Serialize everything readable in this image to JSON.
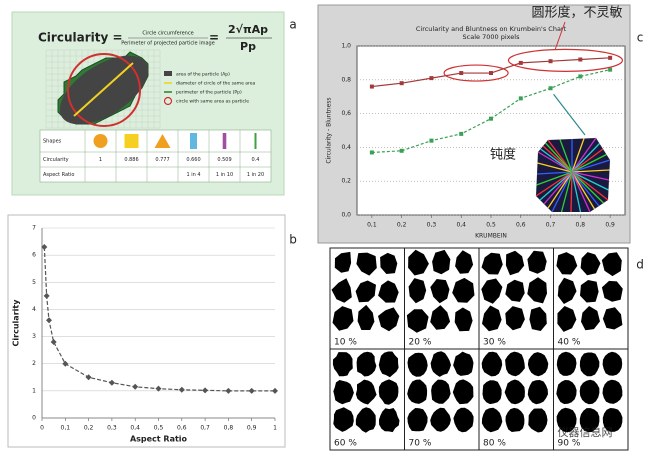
{
  "panel_labels": [
    "a",
    "b",
    "c",
    "d"
  ],
  "panel_a": {
    "lhs": "Circularity =",
    "numerator": "Circle circumference",
    "denominator": "Perimeter of projected particle image",
    "equals": "=",
    "rhs_numerator": "2√πAp",
    "rhs_denominator": "Pp",
    "legend": [
      "area of the particle (Ap)",
      "diameter of circle of the same area",
      "perimeter of the particle (Pp)",
      "circle with same area as particle"
    ],
    "table": {
      "row_headers": [
        "Shapes",
        "Circularity",
        "Aspect Ratio"
      ],
      "circularity": [
        "1",
        "0.886",
        "0.777",
        "0.660",
        "0.509",
        "0.4"
      ],
      "aspect_ratio": [
        null,
        null,
        null,
        "1 in 4",
        "1 in 10",
        "1 in 20"
      ]
    }
  },
  "chart_data": [
    {
      "type": "line",
      "x_label": "Aspect Ratio",
      "y_label": "Circularity",
      "x": [
        0.01,
        0.02,
        0.03,
        0.05,
        0.1,
        0.2,
        0.3,
        0.4,
        0.5,
        0.6,
        0.7,
        0.8,
        0.9,
        1
      ],
      "series": [
        {
          "color": "#555555",
          "values": [
            6.3,
            4.5,
            3.6,
            2.8,
            2.0,
            1.5,
            1.3,
            1.15,
            1.08,
            1.04,
            1.02,
            1.0,
            1.0,
            1.0
          ]
        }
      ],
      "xlim": [
        0,
        1
      ],
      "ylim": [
        0,
        7
      ],
      "xticks": [
        0,
        {
          "value": 0.1,
          "label": "0,1"
        },
        {
          "value": 0.2,
          "label": "0,2"
        },
        {
          "value": 0.3,
          "label": "0,3"
        },
        {
          "value": 0.4,
          "label": "0,4"
        },
        {
          "value": 0.5,
          "label": "0,5"
        },
        {
          "value": 0.6,
          "label": "0,6"
        },
        {
          "value": 0.7,
          "label": "0,7"
        },
        {
          "value": 0.8,
          "label": "0,8"
        },
        {
          "value": 0.9,
          "label": "0,9"
        },
        1
      ],
      "yticks": [
        0,
        1,
        2,
        3,
        4,
        5,
        6,
        7
      ],
      "grid": true
    },
    {
      "type": "line",
      "title": "Circularity and Bluntness on Krumbein's Chart",
      "subtitle": "Scale 7000 pixels",
      "x_label": "KRUMBEIN",
      "y_label": "Circularity - Bluntness",
      "x": [
        0.1,
        0.2,
        0.3,
        0.4,
        0.5,
        0.6,
        0.7,
        0.8,
        0.9
      ],
      "series": [
        {
          "color": "#a33a3a",
          "values": [
            0.76,
            0.78,
            0.81,
            0.84,
            0.84,
            0.9,
            0.91,
            0.92,
            0.93
          ]
        },
        {
          "color": "#3aa055",
          "values": [
            0.37,
            0.38,
            0.44,
            0.48,
            0.57,
            0.69,
            0.75,
            0.82,
            0.86
          ]
        }
      ],
      "xlim": [
        0.05,
        0.95
      ],
      "ylim": [
        0,
        1
      ],
      "xticks": [
        {
          "value": 0.1,
          "label": "0,1"
        },
        {
          "value": 0.2,
          "label": "0,2"
        },
        {
          "value": 0.3,
          "label": "0,3"
        },
        {
          "value": 0.4,
          "label": "0,4"
        },
        {
          "value": 0.5,
          "label": "0,5"
        },
        {
          "value": 0.6,
          "label": "0,6"
        },
        {
          "value": 0.7,
          "label": "0,7"
        },
        {
          "value": 0.8,
          "label": "0,8"
        },
        {
          "value": 0.9,
          "label": "0,9"
        }
      ],
      "yticks": [
        {
          "value": 0,
          "label": "0,0"
        },
        {
          "value": 0.2,
          "label": "0,2"
        },
        {
          "value": 0.4,
          "label": "0,4"
        },
        {
          "value": 0.6,
          "label": "0,6"
        },
        {
          "value": 0.8,
          "label": "0,8"
        },
        {
          "value": 1,
          "label": "1,0"
        }
      ],
      "grid": true,
      "annotations": [
        "圆形度，不灵敏",
        "钝度"
      ]
    }
  ],
  "panel_d": {
    "labels": [
      "10 %",
      "20 %",
      "30 %",
      "40 %",
      "60 %",
      "70 %",
      "80 %",
      "90 %"
    ]
  },
  "watermark": "仪器信息网"
}
